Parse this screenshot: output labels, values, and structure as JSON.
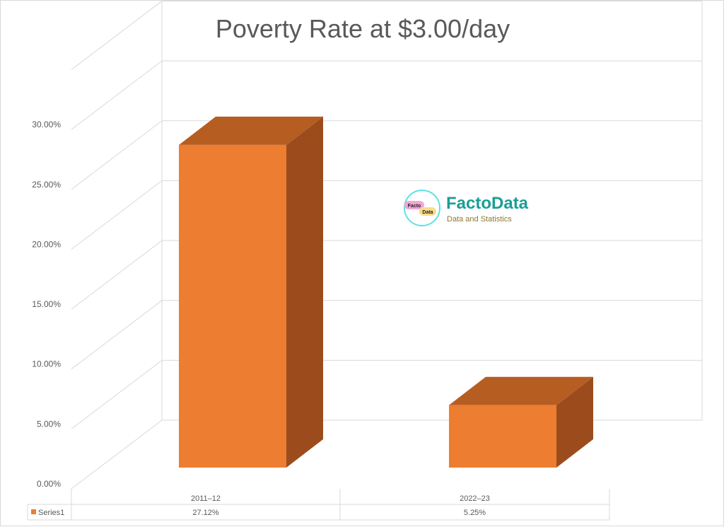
{
  "chart_data": {
    "type": "bar",
    "style": "3d-column",
    "title": "Poverty Rate at $3.00/day",
    "categories": [
      "2011–12",
      "2022–23"
    ],
    "series": [
      {
        "name": "Series1",
        "values": [
          27.12,
          5.25
        ],
        "labels": [
          "27.12%",
          "5.25%"
        ],
        "color": "#ED7D31"
      }
    ],
    "ylim": [
      0,
      35
    ],
    "yticks": [
      "0.00%",
      "5.00%",
      "10.00%",
      "15.00%",
      "20.00%",
      "25.00%",
      "30.00%"
    ],
    "ytick_values": [
      0,
      5,
      10,
      15,
      20,
      25,
      30
    ],
    "grid": true,
    "data_table": true
  },
  "watermark": {
    "brand": "FactoData",
    "tagline": "Data and Statistics",
    "badge_top": "Facto",
    "badge_bottom": "Data"
  },
  "colors": {
    "bar_front": "#ED7D31",
    "bar_top": "#B65D22",
    "bar_side": "#9C4C1C",
    "grid": "#d9d9d9",
    "text": "#595959",
    "brand": "#1A9E96"
  }
}
